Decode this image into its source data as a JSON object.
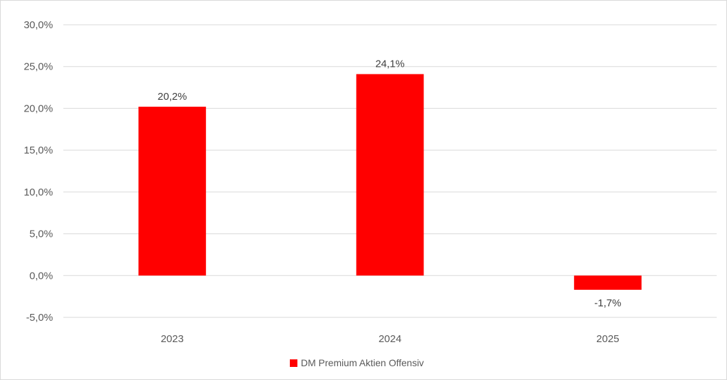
{
  "chart_data": {
    "type": "bar",
    "categories": [
      "2023",
      "2024",
      "2025"
    ],
    "series": [
      {
        "name": "DM Premium Aktien Offensiv",
        "values": [
          20.2,
          24.1,
          -1.7
        ],
        "color": "#ff0000",
        "data_labels": [
          "20,2%",
          "24,1%",
          "-1,7%"
        ]
      }
    ],
    "ylim": [
      -5,
      30
    ],
    "yticks": [
      {
        "value": 30,
        "label": "30,0%"
      },
      {
        "value": 25,
        "label": "25,0%"
      },
      {
        "value": 20,
        "label": "20,0%"
      },
      {
        "value": 15,
        "label": "15,0%"
      },
      {
        "value": 10,
        "label": "10,0%"
      },
      {
        "value": 5,
        "label": "5,0%"
      },
      {
        "value": 0,
        "label": "0,0%"
      },
      {
        "value": -5,
        "label": "-5,0%"
      }
    ],
    "grid": true,
    "gridColor": "#d9d9d9",
    "legend_position": "bottom"
  }
}
